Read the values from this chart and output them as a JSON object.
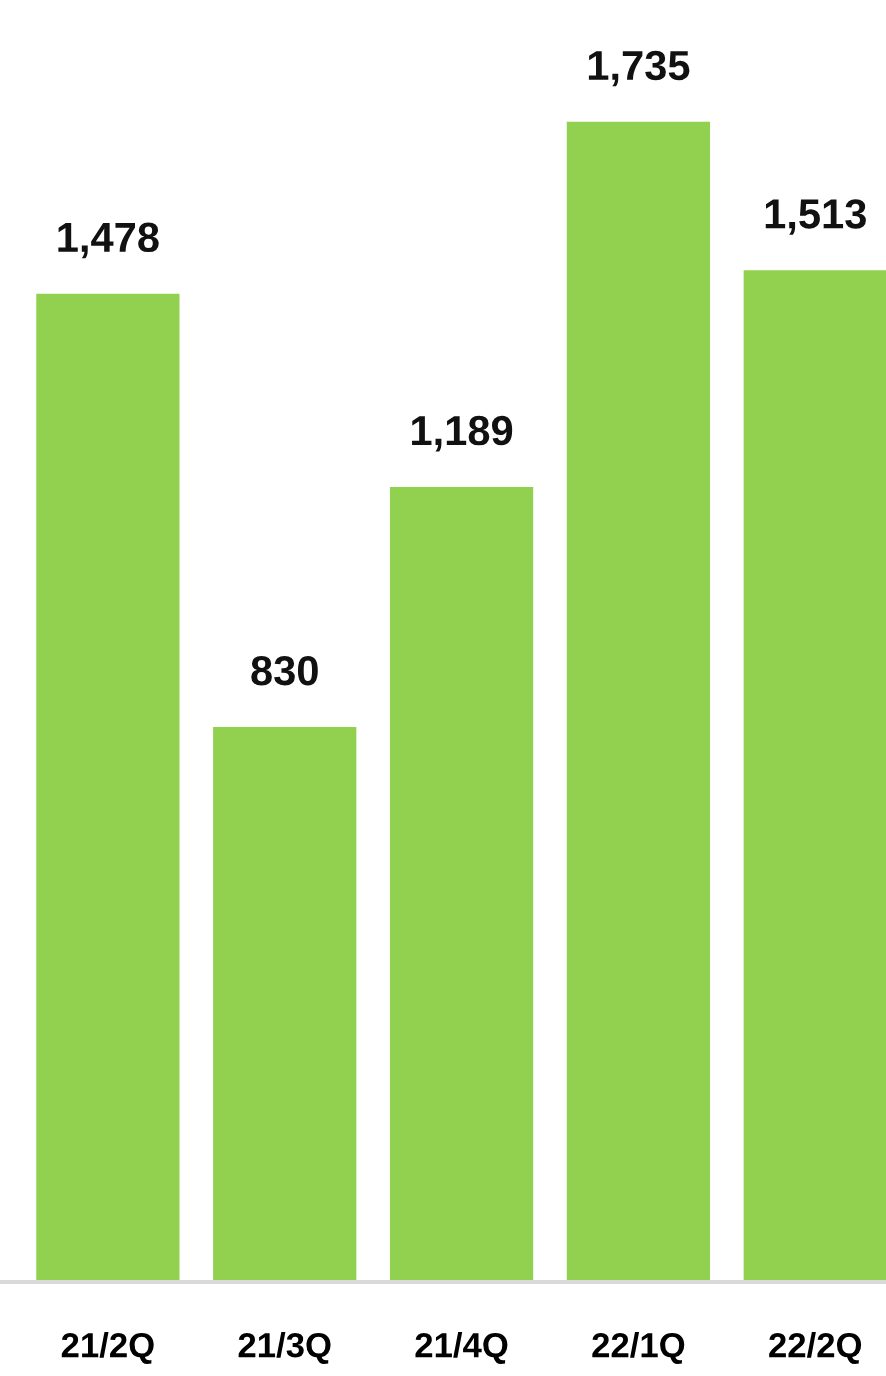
{
  "chart_data": {
    "type": "bar",
    "categories": [
      "21/2Q",
      "21/3Q",
      "21/4Q",
      "22/1Q",
      "22/2Q"
    ],
    "values": [
      1478,
      830,
      1189,
      1735,
      1513
    ],
    "value_labels": [
      "1,478",
      "830",
      "1,189",
      "1,735",
      "1,513"
    ],
    "color": "#92d050",
    "tick_labels": "x"
  }
}
